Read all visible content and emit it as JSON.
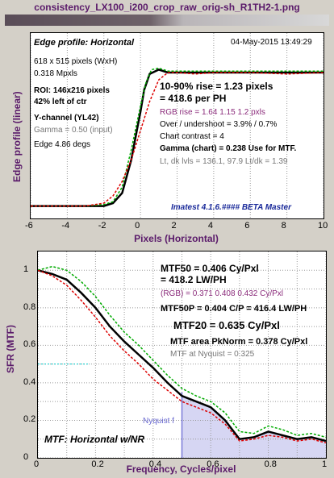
{
  "window_title": "consistency_LX100_i200_crop_raw_orig-sh_R1TH2-1.png",
  "edge": {
    "title": "Edge profile: Horizontal",
    "date": "04-May-2015 13:49:29",
    "ylabel": "Edge profile (linear)",
    "xlabel": "Pixels (Horizontal)",
    "info": [
      "618 x 515 pixels (WxH)",
      "0.318 Mpxls"
    ],
    "roi": [
      "ROI:  146x216 pixels",
      "42% left of ctr"
    ],
    "channel": "Y-channel  (YL42)",
    "gamma_input": "Gamma = 0.50 (input)",
    "edge_angle": "Edge 4.86 degs",
    "rise": "10-90% rise = 1.23 pixels",
    "per_ph": "= 418.6 per PH",
    "rgb_rise": "RGB rise = 1.64  1.15  1.2 pxls",
    "overshoot": "Over / undershoot = 3.9% / 0.7%",
    "contrast": "Chart contrast = 4",
    "gamma_chart": "Gamma (chart) = 0.238  Use for MTF.",
    "levels": "Lt, dk lvls = 136.1, 97.9   Lt/dk = 1.39",
    "version": "Imatest 4.1.6.#### BETA Master"
  },
  "mtf": {
    "ylabel": "SFR (MTF)",
    "xlabel": "Frequency, Cycles/pixel",
    "mtf50": "MTF50 = 0.406 Cy/Pxl",
    "mtf50_lw": "= 418.2 LW/PH",
    "rgb": "(RGB) = 0.371  0.408  0.432 Cy/Pxl",
    "mtf50p": "MTF50P = 0.404 C/P = 416.4 LW/PH",
    "mtf20": "MTF20 = 0.635 Cy/Pxl",
    "area": "MTF area PkNorm = 0.378 Cy/Pxl",
    "nyq": "MTF at Nyquist = 0.325",
    "nyq_label": "Nyquist f",
    "legend": "MTF: Horizontal w/NR"
  },
  "chart_data": [
    {
      "type": "line",
      "title": "Edge profile: Horizontal",
      "xlabel": "Pixels (Horizontal)",
      "ylabel": "Edge profile (linear)",
      "xlim": [
        -6,
        10
      ],
      "xticks": [
        -6,
        -4,
        -2,
        0,
        2,
        4,
        6,
        8,
        10
      ],
      "grid": true,
      "series": [
        {
          "color": "#000000",
          "x": [
            -6,
            -4,
            -3,
            -2,
            -1.5,
            -1,
            -0.5,
            -0.2,
            0,
            0.2,
            0.5,
            1,
            1.5,
            2,
            3,
            4,
            6,
            8,
            10
          ],
          "y": [
            0.03,
            0.03,
            0.03,
            0.03,
            0.05,
            0.12,
            0.35,
            0.55,
            0.68,
            0.83,
            0.94,
            0.97,
            0.95,
            0.95,
            0.95,
            0.95,
            0.95,
            0.95,
            0.95
          ]
        },
        {
          "color": "#00aa00",
          "x": [
            -6,
            -4,
            -3,
            -2,
            -1.5,
            -1,
            -0.5,
            0,
            0.3,
            0.6,
            1,
            1.5,
            2,
            3,
            4,
            6,
            8,
            10
          ],
          "y": [
            0.03,
            0.03,
            0.03,
            0.04,
            0.06,
            0.16,
            0.42,
            0.72,
            0.88,
            0.97,
            0.98,
            0.96,
            0.96,
            0.96,
            0.96,
            0.96,
            0.96,
            0.96
          ]
        },
        {
          "color": "#dd0000",
          "x": [
            -6,
            -4,
            -3,
            -2,
            -1.5,
            -1,
            -0.5,
            0,
            0.5,
            1,
            1.5,
            2,
            3,
            4,
            6,
            8,
            10
          ],
          "y": [
            0.03,
            0.03,
            0.03,
            0.05,
            0.1,
            0.2,
            0.35,
            0.55,
            0.75,
            0.9,
            0.95,
            0.95,
            0.94,
            0.95,
            0.95,
            0.94,
            0.95
          ]
        }
      ]
    },
    {
      "type": "line",
      "title": "MTF: Horizontal w/NR",
      "xlabel": "Frequency, Cycles/pixel",
      "ylabel": "SFR (MTF)",
      "xlim": [
        0,
        1
      ],
      "ylim": [
        0,
        1.1
      ],
      "xticks": [
        0,
        0.1,
        0.2,
        0.3,
        0.4,
        0.5,
        0.6,
        0.7,
        0.8,
        0.9,
        1
      ],
      "yticks": [
        0,
        0.1,
        0.2,
        0.3,
        0.4,
        0.5,
        0.6,
        0.7,
        0.8,
        0.9,
        1
      ],
      "grid": true,
      "series": [
        {
          "color": "#000000",
          "x": [
            0,
            0.05,
            0.1,
            0.15,
            0.2,
            0.25,
            0.3,
            0.35,
            0.4,
            0.45,
            0.5,
            0.55,
            0.6,
            0.65,
            0.7,
            0.75,
            0.8,
            0.85,
            0.9,
            0.95,
            1
          ],
          "y": [
            1,
            0.98,
            0.95,
            0.88,
            0.8,
            0.7,
            0.62,
            0.55,
            0.48,
            0.4,
            0.33,
            0.3,
            0.27,
            0.2,
            0.1,
            0.11,
            0.14,
            0.12,
            0.1,
            0.11,
            0.09
          ]
        },
        {
          "color": "#00aa00",
          "x": [
            0,
            0.05,
            0.1,
            0.15,
            0.2,
            0.25,
            0.3,
            0.35,
            0.4,
            0.45,
            0.5,
            0.55,
            0.6,
            0.65,
            0.7,
            0.75,
            0.8,
            0.85,
            0.9,
            0.95,
            1
          ],
          "y": [
            1,
            1.02,
            1.0,
            0.94,
            0.86,
            0.76,
            0.67,
            0.6,
            0.52,
            0.44,
            0.37,
            0.33,
            0.3,
            0.24,
            0.14,
            0.13,
            0.17,
            0.15,
            0.12,
            0.13,
            0.11
          ]
        },
        {
          "color": "#dd0000",
          "x": [
            0,
            0.05,
            0.1,
            0.15,
            0.2,
            0.25,
            0.3,
            0.35,
            0.4,
            0.45,
            0.5,
            0.55,
            0.6,
            0.65,
            0.7,
            0.75,
            0.8,
            0.85,
            0.9,
            0.95,
            1
          ],
          "y": [
            1,
            0.97,
            0.92,
            0.84,
            0.75,
            0.65,
            0.57,
            0.5,
            0.42,
            0.36,
            0.3,
            0.27,
            0.24,
            0.18,
            0.09,
            0.1,
            0.12,
            0.11,
            0.09,
            0.1,
            0.08
          ]
        }
      ],
      "nyquist": 0.5,
      "mtf50_level": 0.5
    }
  ]
}
